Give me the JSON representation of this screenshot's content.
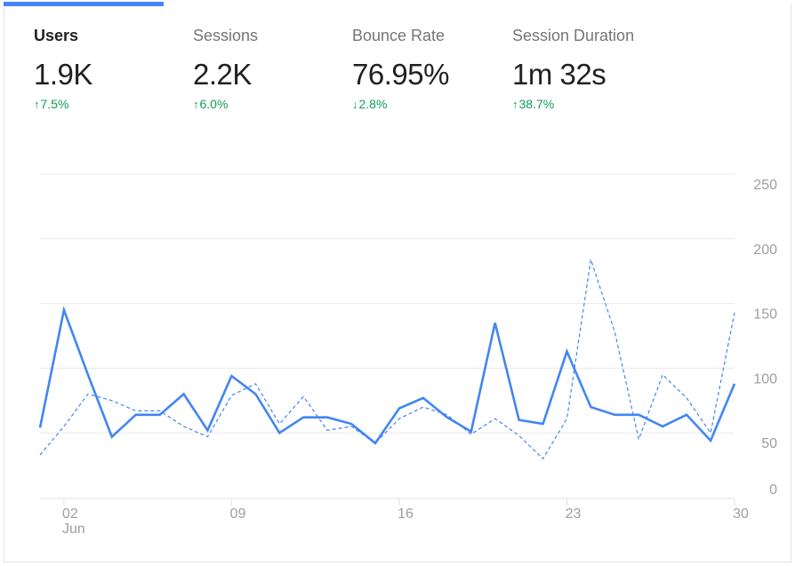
{
  "metrics": [
    {
      "label": "Users",
      "value": "1.9K",
      "change_arrow": "↑",
      "change": "7.5%",
      "active": true
    },
    {
      "label": "Sessions",
      "value": "2.2K",
      "change_arrow": "↑",
      "change": "6.0%",
      "active": false
    },
    {
      "label": "Bounce Rate",
      "value": "76.95%",
      "change_arrow": "↓",
      "change": "2.8%",
      "active": false
    },
    {
      "label": "Session Duration",
      "value": "1m 32s",
      "change_arrow": "↑",
      "change": "38.7%",
      "active": false
    }
  ],
  "colors": {
    "accent": "#4285f4",
    "positive": "#0f9d58",
    "grid": "#e8e8e8",
    "axis_text": "#9e9e9e"
  },
  "chart_data": {
    "type": "line",
    "x": [
      1,
      2,
      3,
      4,
      5,
      6,
      7,
      8,
      9,
      10,
      11,
      12,
      13,
      14,
      15,
      16,
      17,
      18,
      19,
      20,
      21,
      22,
      23,
      24,
      25,
      26,
      27,
      28,
      29,
      30
    ],
    "x_ticks": [
      {
        "day": 2,
        "label": "02",
        "sublabel": "Jun"
      },
      {
        "day": 9,
        "label": "09"
      },
      {
        "day": 16,
        "label": "16"
      },
      {
        "day": 23,
        "label": "23"
      },
      {
        "day": 30,
        "label": "30"
      }
    ],
    "y_ticks": [
      0,
      50,
      100,
      150,
      200,
      250
    ],
    "ylim": [
      0,
      250
    ],
    "y_axis_position": "right",
    "grid": true,
    "series": [
      {
        "style": "solid",
        "values": [
          54,
          145,
          95,
          47,
          64,
          64,
          80,
          52,
          94,
          80,
          50,
          62,
          62,
          57,
          42,
          69,
          77,
          62,
          51,
          135,
          60,
          57,
          113,
          70,
          64,
          64,
          55,
          64,
          44,
          88
        ]
      },
      {
        "style": "dashed",
        "values": [
          33,
          55,
          80,
          75,
          67,
          67,
          55,
          47,
          79,
          88,
          57,
          78,
          52,
          55,
          42,
          61,
          70,
          64,
          49,
          61,
          48,
          30,
          61,
          184,
          128,
          45,
          95,
          77,
          50,
          143
        ]
      }
    ]
  }
}
